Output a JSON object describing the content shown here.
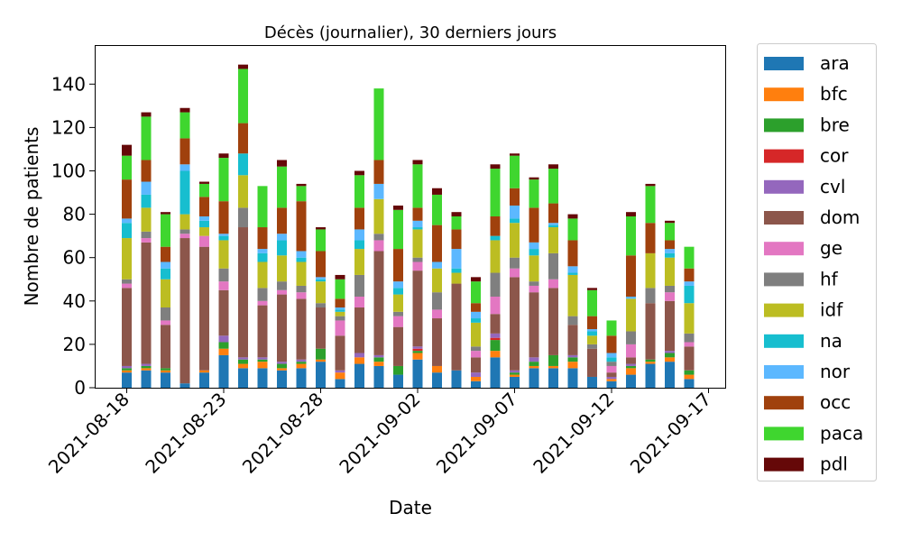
{
  "chart_data": {
    "type": "bar",
    "stacked": true,
    "title": "Décès (journalier), 30 derniers jours",
    "xlabel": "Date",
    "ylabel": "Nombre de patients",
    "ylim": [
      0,
      158
    ],
    "yticks": [
      0,
      20,
      40,
      60,
      80,
      100,
      120,
      140
    ],
    "xticks": [
      "2021-08-18",
      "2021-08-23",
      "2021-08-28",
      "2021-09-02",
      "2021-09-07",
      "2021-09-12",
      "2021-09-17"
    ],
    "xtick_day_index": [
      0,
      5,
      10,
      15,
      20,
      25,
      30
    ],
    "grid": false,
    "legend_position": "outside right",
    "categories": [
      "2021-08-18",
      "2021-08-19",
      "2021-08-20",
      "2021-08-21",
      "2021-08-22",
      "2021-08-23",
      "2021-08-24",
      "2021-08-25",
      "2021-08-26",
      "2021-08-27",
      "2021-08-28",
      "2021-08-29",
      "2021-08-30",
      "2021-08-31",
      "2021-09-01",
      "2021-09-02",
      "2021-09-03",
      "2021-09-04",
      "2021-09-05",
      "2021-09-06",
      "2021-09-07",
      "2021-09-08",
      "2021-09-09",
      "2021-09-10",
      "2021-09-11",
      "2021-09-12",
      "2021-09-13",
      "2021-09-14",
      "2021-09-15",
      "2021-09-16"
    ],
    "series": [
      {
        "name": "ara",
        "color": "#1f77b4",
        "values": [
          7,
          8,
          7,
          2,
          7,
          15,
          9,
          9,
          8,
          9,
          12,
          4,
          11,
          10,
          6,
          13,
          7,
          8,
          3,
          14,
          5,
          9,
          9,
          9,
          5,
          3,
          6,
          11,
          12,
          4
        ]
      },
      {
        "name": "bfc",
        "color": "#ff7f0e",
        "values": [
          1,
          1,
          1,
          0,
          1,
          3,
          2,
          3,
          1,
          2,
          1,
          3,
          3,
          2,
          0,
          3,
          3,
          0,
          2,
          3,
          1,
          1,
          1,
          3,
          0,
          1,
          3,
          1,
          2,
          2
        ]
      },
      {
        "name": "bre",
        "color": "#2ca02c",
        "values": [
          1,
          1,
          1,
          0,
          0,
          3,
          2,
          1,
          2,
          1,
          5,
          0,
          0,
          2,
          4,
          1,
          0,
          0,
          0,
          5,
          1,
          2,
          5,
          2,
          0,
          0,
          1,
          1,
          2,
          2
        ]
      },
      {
        "name": "cor",
        "color": "#d62728",
        "values": [
          0,
          0,
          0,
          0,
          0,
          0,
          0,
          0,
          0,
          0,
          0,
          0,
          0,
          0,
          0,
          1,
          0,
          0,
          0,
          1,
          0,
          0,
          0,
          0,
          0,
          0,
          0,
          0,
          0,
          0
        ]
      },
      {
        "name": "cvl",
        "color": "#9467bd",
        "values": [
          1,
          1,
          0,
          0,
          0,
          3,
          1,
          1,
          1,
          1,
          0,
          1,
          2,
          1,
          0,
          1,
          0,
          0,
          2,
          2,
          1,
          2,
          0,
          1,
          0,
          1,
          1,
          0,
          1,
          0
        ]
      },
      {
        "name": "dom",
        "color": "#8c564b",
        "values": [
          36,
          56,
          20,
          67,
          57,
          21,
          60,
          24,
          31,
          28,
          19,
          16,
          21,
          48,
          18,
          35,
          22,
          40,
          7,
          9,
          43,
          30,
          31,
          14,
          13,
          2,
          3,
          26,
          23,
          11
        ]
      },
      {
        "name": "ge",
        "color": "#e377c2",
        "values": [
          2,
          2,
          2,
          2,
          5,
          4,
          0,
          2,
          2,
          3,
          0,
          7,
          5,
          5,
          5,
          4,
          4,
          0,
          3,
          8,
          4,
          3,
          4,
          0,
          0,
          3,
          6,
          0,
          4,
          2
        ]
      },
      {
        "name": "hf",
        "color": "#7f7f7f",
        "values": [
          2,
          3,
          6,
          2,
          0,
          6,
          9,
          6,
          4,
          3,
          2,
          2,
          10,
          3,
          2,
          2,
          8,
          0,
          2,
          11,
          5,
          2,
          12,
          4,
          2,
          2,
          6,
          7,
          3,
          4
        ]
      },
      {
        "name": "idf",
        "color": "#bcbd22",
        "values": [
          19,
          11,
          13,
          7,
          4,
          13,
          15,
          12,
          12,
          11,
          10,
          2,
          12,
          16,
          8,
          13,
          11,
          5,
          11,
          15,
          16,
          12,
          12,
          19,
          4,
          0,
          15,
          16,
          13,
          14
        ]
      },
      {
        "name": "na",
        "color": "#17becf",
        "values": [
          7,
          6,
          5,
          20,
          3,
          2,
          10,
          4,
          7,
          2,
          1,
          1,
          4,
          0,
          3,
          1,
          0,
          2,
          2,
          2,
          2,
          3,
          1,
          1,
          2,
          2,
          0,
          0,
          2,
          8
        ]
      },
      {
        "name": "nor",
        "color": "#5cb8ff",
        "values": [
          2,
          6,
          3,
          3,
          2,
          1,
          0,
          2,
          3,
          3,
          1,
          1,
          5,
          7,
          3,
          3,
          3,
          9,
          3,
          0,
          6,
          3,
          1,
          3,
          1,
          2,
          1,
          0,
          2,
          2
        ]
      },
      {
        "name": "occ",
        "color": "#a0410d",
        "values": [
          18,
          10,
          7,
          12,
          9,
          15,
          14,
          10,
          12,
          23,
          12,
          4,
          10,
          11,
          15,
          6,
          17,
          9,
          4,
          9,
          8,
          16,
          9,
          12,
          6,
          8,
          19,
          14,
          4,
          6
        ]
      },
      {
        "name": "paca",
        "color": "#3fd62f",
        "values": [
          11,
          20,
          15,
          12,
          6,
          20,
          25,
          19,
          19,
          7,
          10,
          9,
          15,
          33,
          18,
          20,
          14,
          6,
          10,
          22,
          15,
          13,
          16,
          10,
          12,
          7,
          18,
          17,
          8,
          10
        ]
      },
      {
        "name": "pdl",
        "color": "#650808",
        "values": [
          5,
          2,
          1,
          2,
          1,
          2,
          2,
          0,
          3,
          1,
          1,
          2,
          2,
          0,
          2,
          2,
          3,
          2,
          2,
          2,
          1,
          1,
          2,
          2,
          1,
          0,
          2,
          1,
          1,
          0
        ]
      }
    ]
  }
}
